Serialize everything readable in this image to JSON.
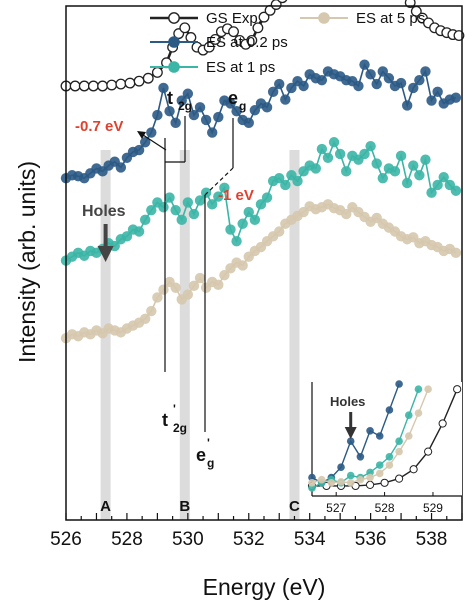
{
  "chart_data": {
    "type": "line",
    "xlabel": "Energy (eV)",
    "ylabel": "Intensity (arb. units)",
    "xlim": [
      526,
      539
    ],
    "xticks": [
      526,
      528,
      530,
      532,
      534,
      536,
      538
    ],
    "colors": {
      "gs": "#222222",
      "es02": "#2b5a85",
      "es1": "#3bb5a6",
      "es5": "#d6c8ae"
    },
    "legend": [
      {
        "key": "gs",
        "label": "GS Exp."
      },
      {
        "key": "es02",
        "label": "ES at 0.2 ps"
      },
      {
        "key": "es1",
        "label": "ES at 1 ps"
      },
      {
        "key": "es5",
        "label": "ES at 5 ps"
      }
    ],
    "series": [
      {
        "key": "gs",
        "name": "GS Exp.",
        "x": [
          526.0,
          526.3,
          526.6,
          526.9,
          527.2,
          527.5,
          527.8,
          528.1,
          528.4,
          528.7,
          529.0,
          529.3,
          529.5,
          529.7,
          529.9,
          530.1,
          530.3,
          530.5,
          530.7,
          530.9,
          531.1,
          531.3,
          531.5,
          531.7,
          531.9,
          532.1,
          532.3,
          532.5,
          532.7,
          532.9,
          533.1,
          533.3,
          533.5,
          533.7,
          533.9,
          534.1,
          534.3,
          534.5,
          534.7,
          534.9,
          535.1,
          535.3,
          535.5,
          535.7,
          535.9,
          536.1,
          536.3,
          536.5,
          536.7,
          536.9,
          537.1,
          537.3,
          537.5,
          537.7,
          537.9,
          538.1,
          538.3,
          538.5,
          538.7,
          538.9
        ],
        "y": [
          1.0,
          1.0,
          1.0,
          1.0,
          1.0,
          1.01,
          1.02,
          1.03,
          1.05,
          1.08,
          1.14,
          1.24,
          1.4,
          1.54,
          1.6,
          1.5,
          1.4,
          1.37,
          1.4,
          1.48,
          1.56,
          1.59,
          1.56,
          1.47,
          1.43,
          1.47,
          1.6,
          1.71,
          1.78,
          1.84,
          1.91,
          1.99,
          2.05,
          2.11,
          2.18,
          2.26,
          2.33,
          2.39,
          2.43,
          2.45,
          2.45,
          2.45,
          2.44,
          2.44,
          2.43,
          2.41,
          2.36,
          2.27,
          2.17,
          2.07,
          1.96,
          1.86,
          1.77,
          1.7,
          1.65,
          1.6,
          1.57,
          1.55,
          1.53,
          1.52
        ]
      },
      {
        "key": "es02",
        "name": "ES at 0.2 ps",
        "x": [
          526.0,
          526.2,
          526.4,
          526.6,
          526.8,
          527.0,
          527.2,
          527.4,
          527.6,
          527.8,
          528.0,
          528.2,
          528.4,
          528.6,
          528.8,
          529.0,
          529.2,
          529.4,
          529.6,
          529.8,
          530.0,
          530.2,
          530.4,
          530.6,
          530.8,
          531.0,
          531.2,
          531.4,
          531.6,
          531.8,
          532.0,
          532.2,
          532.4,
          532.6,
          532.8,
          533.0,
          533.2,
          533.4,
          533.6,
          533.8,
          534.0,
          534.2,
          534.4,
          534.6,
          534.8,
          535.0,
          535.2,
          535.4,
          535.6,
          535.8,
          536.0,
          536.2,
          536.4,
          536.6,
          536.8,
          537.0,
          537.2,
          537.4,
          537.6,
          537.8,
          538.0,
          538.2,
          538.4,
          538.6,
          538.8
        ],
        "y": [
          0.05,
          0.08,
          0.07,
          0.05,
          0.1,
          0.15,
          0.12,
          0.18,
          0.22,
          0.16,
          0.26,
          0.32,
          0.34,
          0.42,
          0.52,
          0.7,
          0.98,
          0.74,
          0.62,
          0.85,
          0.92,
          0.7,
          0.78,
          0.65,
          0.52,
          0.68,
          0.85,
          0.82,
          0.74,
          0.65,
          0.62,
          0.75,
          0.82,
          0.78,
          0.94,
          1.02,
          0.86,
          0.98,
          1.05,
          1.0,
          1.12,
          1.08,
          1.06,
          1.15,
          1.12,
          1.1,
          1.06,
          1.05,
          1.0,
          1.22,
          1.12,
          1.02,
          1.15,
          1.08,
          1.0,
          1.03,
          0.8,
          0.98,
          1.06,
          1.15,
          0.85,
          0.94,
          0.82,
          0.86,
          0.88
        ]
      },
      {
        "key": "es1",
        "name": "ES at 1 ps",
        "x": [
          526.0,
          526.2,
          526.4,
          526.6,
          526.8,
          527.0,
          527.2,
          527.4,
          527.6,
          527.8,
          528.0,
          528.2,
          528.4,
          528.6,
          528.8,
          529.0,
          529.2,
          529.4,
          529.6,
          529.8,
          530.0,
          530.2,
          530.4,
          530.6,
          530.8,
          531.0,
          531.2,
          531.4,
          531.6,
          531.8,
          532.0,
          532.2,
          532.4,
          532.6,
          532.8,
          533.0,
          533.2,
          533.4,
          533.6,
          533.8,
          534.0,
          534.2,
          534.4,
          534.6,
          534.8,
          535.0,
          535.2,
          535.4,
          535.6,
          535.8,
          536.0,
          536.2,
          536.4,
          536.6,
          536.8,
          537.0,
          537.2,
          537.4,
          537.6,
          537.8,
          538.0,
          538.2,
          538.4,
          538.6,
          538.8
        ],
        "y": [
          -0.8,
          -0.76,
          -0.72,
          -0.75,
          -0.7,
          -0.72,
          -0.68,
          -0.62,
          -0.65,
          -0.58,
          -0.55,
          -0.48,
          -0.5,
          -0.38,
          -0.28,
          -0.2,
          -0.25,
          -0.15,
          -0.28,
          -0.38,
          -0.2,
          -0.32,
          -0.18,
          -0.1,
          -0.22,
          -0.14,
          -0.05,
          -0.48,
          -0.6,
          -0.42,
          -0.3,
          -0.38,
          -0.22,
          -0.15,
          0.02,
          0.05,
          -0.02,
          0.08,
          0.02,
          0.12,
          0.18,
          0.15,
          0.35,
          0.26,
          0.42,
          0.3,
          0.12,
          0.28,
          0.24,
          0.3,
          0.38,
          0.2,
          0.05,
          0.15,
          0.12,
          0.28,
          0.0,
          0.18,
          0.08,
          0.24,
          -0.1,
          -0.02,
          0.06,
          -0.02,
          -0.08
        ]
      },
      {
        "key": "es5",
        "name": "ES at 5 ps",
        "x": [
          526.0,
          526.2,
          526.4,
          526.6,
          526.8,
          527.0,
          527.2,
          527.4,
          527.6,
          527.8,
          528.0,
          528.2,
          528.4,
          528.6,
          528.8,
          529.0,
          529.2,
          529.4,
          529.6,
          529.8,
          530.0,
          530.2,
          530.4,
          530.6,
          530.8,
          531.0,
          531.2,
          531.4,
          531.6,
          531.8,
          532.0,
          532.2,
          532.4,
          532.6,
          532.8,
          533.0,
          533.2,
          533.4,
          533.6,
          533.8,
          534.0,
          534.2,
          534.4,
          534.6,
          534.8,
          535.0,
          535.2,
          535.4,
          535.6,
          535.8,
          536.0,
          536.2,
          536.4,
          536.6,
          536.8,
          537.0,
          537.2,
          537.4,
          537.6,
          537.8,
          538.0,
          538.2,
          538.4,
          538.6,
          538.8
        ],
        "y": [
          -1.6,
          -1.56,
          -1.58,
          -1.54,
          -1.56,
          -1.52,
          -1.55,
          -1.5,
          -1.52,
          -1.54,
          -1.5,
          -1.47,
          -1.44,
          -1.4,
          -1.32,
          -1.18,
          -1.1,
          -1.02,
          -1.08,
          -1.2,
          -1.15,
          -1.06,
          -0.98,
          -1.08,
          -1.02,
          -1.05,
          -0.95,
          -0.88,
          -0.82,
          -0.85,
          -0.76,
          -0.7,
          -0.66,
          -0.6,
          -0.55,
          -0.5,
          -0.42,
          -0.38,
          -0.34,
          -0.3,
          -0.24,
          -0.27,
          -0.25,
          -0.22,
          -0.26,
          -0.28,
          -0.32,
          -0.25,
          -0.3,
          -0.35,
          -0.4,
          -0.36,
          -0.42,
          -0.46,
          -0.5,
          -0.55,
          -0.58,
          -0.56,
          -0.62,
          -0.6,
          -0.64,
          -0.66,
          -0.7,
          -0.68,
          -0.72
        ]
      }
    ],
    "vertical_bands": [
      {
        "x": 527.3,
        "label": "A"
      },
      {
        "x": 529.9,
        "label": "B"
      },
      {
        "x": 533.5,
        "label": "C"
      }
    ],
    "annotations": {
      "holes": "Holes",
      "shift1": "-0.7 eV",
      "shift2": "-1 eV",
      "t2g": "t",
      "t2g_sub": "2g",
      "eg": "e",
      "eg_sub": "g",
      "t2g_prime": "t",
      "t2g_prime_sub": "2g",
      "t2g_prime_mark": "'",
      "eg_prime": "e",
      "eg_prime_sub": "g",
      "eg_prime_mark": "'",
      "annot_color": "#e0412f"
    },
    "inset": {
      "xlim": [
        526.5,
        529.6
      ],
      "xticks": [
        527,
        528,
        529
      ],
      "holes": "Holes",
      "series": [
        {
          "key": "gs",
          "x": [
            526.5,
            526.8,
            527.1,
            527.4,
            527.7,
            528.0,
            528.3,
            528.6,
            528.9,
            529.2,
            529.5
          ],
          "y": [
            0.02,
            0.02,
            0.02,
            0.02,
            0.03,
            0.05,
            0.09,
            0.18,
            0.35,
            0.62,
            0.95
          ]
        },
        {
          "key": "es02",
          "x": [
            526.5,
            526.7,
            526.9,
            527.1,
            527.3,
            527.5,
            527.7,
            527.9,
            528.1,
            528.3
          ],
          "y": [
            0.1,
            0.05,
            0.1,
            0.2,
            0.45,
            0.3,
            0.55,
            0.5,
            0.75,
            1.0
          ]
        },
        {
          "key": "es1",
          "x": [
            526.5,
            526.7,
            526.9,
            527.1,
            527.3,
            527.5,
            527.7,
            527.9,
            528.1,
            528.3,
            528.5,
            528.7
          ],
          "y": [
            0.0,
            0.05,
            0.08,
            0.05,
            0.12,
            0.1,
            0.15,
            0.22,
            0.3,
            0.45,
            0.7,
            0.95
          ]
        },
        {
          "key": "es5",
          "x": [
            526.5,
            526.7,
            526.9,
            527.1,
            527.3,
            527.5,
            527.7,
            527.9,
            528.1,
            528.3,
            528.5,
            528.7,
            528.9
          ],
          "y": [
            0.05,
            0.08,
            0.05,
            0.06,
            0.05,
            0.08,
            0.1,
            0.14,
            0.22,
            0.35,
            0.5,
            0.72,
            0.95
          ]
        }
      ]
    }
  }
}
